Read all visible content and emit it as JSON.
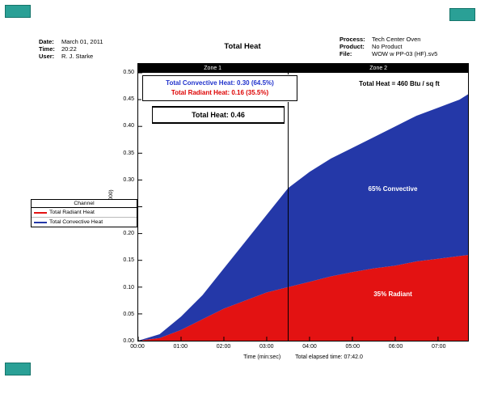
{
  "colors": {
    "convective": "#2438a8",
    "radiant": "#e31212",
    "convective_text": "#2233cc",
    "radiant_text": "#dd0000",
    "zone_bar": "#000000",
    "chip": "#2aa096"
  },
  "window": {
    "chips": [
      "chip-top-left",
      "chip-top-right",
      "chip-bottom-left"
    ]
  },
  "header": {
    "left": {
      "date_label": "Date:",
      "date": "March 01, 2011",
      "time_label": "Time:",
      "time": "20:22",
      "user_label": "User:",
      "user": "R. J. Starke"
    },
    "title": "Total Heat",
    "right": {
      "process_label": "Process:",
      "process": "Tech Center Oven",
      "product_label": "Product:",
      "product": "No Product",
      "file_label": "File:",
      "file": "WOW w PP-03 (HF).sv5"
    }
  },
  "zones": {
    "zone1_label": "Zone 1",
    "zone2_label": "Zone 2"
  },
  "legend": {
    "header": "Channel",
    "items": [
      {
        "label": "Total Radiant Heat",
        "color": "#e31212"
      },
      {
        "label": "Total Convective Heat",
        "color": "#2438a8"
      }
    ]
  },
  "overlay": {
    "convective_line": "Total Convective Heat: 0.30 (64.5%)",
    "radiant_line": "Total Radiant Heat: 0.16 (35.5%)",
    "total_line": "Total Heat: 0.46",
    "total_btu": "Total Heat = 460 Btu / sq ft",
    "convective_area_label": "65% Convective",
    "radiant_area_label": "35% Radiant"
  },
  "axes": {
    "x_caption": "Time (min:sec)",
    "elapsed_caption": "Total elapsed time: 07:42.0",
    "y_caption": "1 (Btu/Ft 1000)"
  },
  "chart_data": {
    "type": "area",
    "stacked": true,
    "title": "Total Heat",
    "x_unit": "min:sec",
    "x_seconds": [
      0,
      30,
      60,
      90,
      120,
      150,
      180,
      210,
      240,
      270,
      300,
      330,
      360,
      390,
      420,
      450,
      462
    ],
    "series": [
      {
        "name": "Total Radiant Heat",
        "color": "#e31212",
        "values": [
          0,
          0.005,
          0.02,
          0.04,
          0.06,
          0.075,
          0.09,
          0.1,
          0.11,
          0.12,
          0.128,
          0.135,
          0.14,
          0.148,
          0.153,
          0.158,
          0.16
        ]
      },
      {
        "name": "Total Convective Heat",
        "color": "#2438a8",
        "values": [
          0,
          0.007,
          0.025,
          0.045,
          0.075,
          0.11,
          0.145,
          0.185,
          0.205,
          0.22,
          0.232,
          0.245,
          0.26,
          0.272,
          0.282,
          0.292,
          0.3
        ]
      }
    ],
    "totals": {
      "convective": 0.3,
      "radiant": 0.16,
      "total": 0.46,
      "convective_pct": 64.5,
      "radiant_pct": 35.5,
      "total_btu_per_sqft": 460
    },
    "xlim": [
      0,
      462
    ],
    "ylim": [
      0,
      0.5
    ],
    "x_ticks": {
      "seconds": [
        0,
        60,
        120,
        180,
        240,
        300,
        360,
        420
      ],
      "labels": [
        "00:00",
        "01:00",
        "02:00",
        "03:00",
        "04:00",
        "05:00",
        "06:00",
        "07:00"
      ]
    },
    "y_ticks": {
      "values": [
        0,
        0.05,
        0.1,
        0.15,
        0.2,
        0.25,
        0.3,
        0.35,
        0.4,
        0.45,
        0.5
      ],
      "labels": [
        "0.00",
        "0.05",
        "0.10",
        "0.15",
        "0.20",
        "0.25",
        "0.30",
        "0.35",
        "0.40",
        "0.45",
        "0.50"
      ]
    },
    "zone_divider_seconds": 210,
    "elapsed_time": "07:42.0",
    "legend_position": "left",
    "grid": false
  }
}
